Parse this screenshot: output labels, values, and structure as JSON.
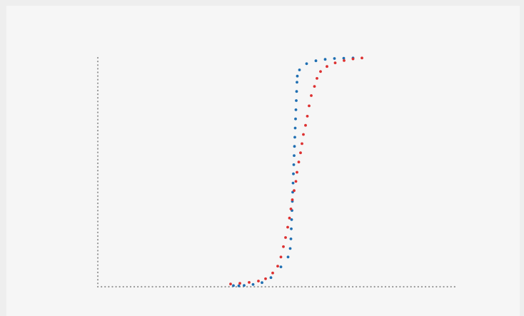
{
  "chart_data": {
    "type": "scatter",
    "title": "",
    "xlabel": "",
    "ylabel": "",
    "xlim": [
      0,
      100
    ],
    "ylim": [
      0,
      1
    ],
    "grid": false,
    "legend": "none",
    "axis_color": "#999999",
    "background": "#f6f6f6",
    "series": [
      {
        "color": "#1f6fb2",
        "points": [
          [
            38,
            0.005
          ],
          [
            39.5,
            0.004
          ],
          [
            41,
            0.006
          ],
          [
            43.5,
            0.01
          ],
          [
            46,
            0.018
          ],
          [
            48.5,
            0.04
          ],
          [
            51.3,
            0.087
          ],
          [
            53.3,
            0.13
          ],
          [
            53.9,
            0.167
          ],
          [
            54.1,
            0.209
          ],
          [
            54.2,
            0.253
          ],
          [
            54.3,
            0.293
          ],
          [
            54.4,
            0.333
          ],
          [
            54.5,
            0.373
          ],
          [
            54.6,
            0.413
          ],
          [
            54.7,
            0.453
          ],
          [
            54.8,
            0.493
          ],
          [
            54.9,
            0.533
          ],
          [
            55.0,
            0.573
          ],
          [
            55.1,
            0.613
          ],
          [
            55.2,
            0.653
          ],
          [
            55.3,
            0.693
          ],
          [
            55.4,
            0.733
          ],
          [
            55.5,
            0.773
          ],
          [
            55.6,
            0.813
          ],
          [
            55.7,
            0.853
          ],
          [
            55.8,
            0.893
          ],
          [
            55.9,
            0.92
          ],
          [
            56.5,
            0.947
          ],
          [
            58.5,
            0.974
          ],
          [
            61.1,
            0.987
          ],
          [
            63.7,
            0.993
          ],
          [
            66.3,
            0.997
          ],
          [
            68.9,
            0.998
          ],
          [
            71.5,
            0.999
          ]
        ]
      },
      {
        "color": "#dd3030",
        "points": [
          [
            37.2,
            0.012
          ],
          [
            39.8,
            0.015
          ],
          [
            42.4,
            0.019
          ],
          [
            45.0,
            0.025
          ],
          [
            47.0,
            0.035
          ],
          [
            49.0,
            0.06
          ],
          [
            50.4,
            0.09
          ],
          [
            51.3,
            0.13
          ],
          [
            52.0,
            0.175
          ],
          [
            52.6,
            0.215
          ],
          [
            53.2,
            0.26
          ],
          [
            53.7,
            0.3
          ],
          [
            54.1,
            0.34
          ],
          [
            54.5,
            0.38
          ],
          [
            55.0,
            0.42
          ],
          [
            55.5,
            0.46
          ],
          [
            55.8,
            0.5
          ],
          [
            56.3,
            0.545
          ],
          [
            56.8,
            0.585
          ],
          [
            57.2,
            0.625
          ],
          [
            57.6,
            0.665
          ],
          [
            58.2,
            0.705
          ],
          [
            58.7,
            0.745
          ],
          [
            59.2,
            0.79
          ],
          [
            59.8,
            0.835
          ],
          [
            60.7,
            0.875
          ],
          [
            61.4,
            0.91
          ],
          [
            62.4,
            0.94
          ],
          [
            64.2,
            0.962
          ],
          [
            66.5,
            0.978
          ],
          [
            69.0,
            0.988
          ],
          [
            71.5,
            0.995
          ],
          [
            74.0,
            0.999
          ]
        ]
      }
    ]
  }
}
